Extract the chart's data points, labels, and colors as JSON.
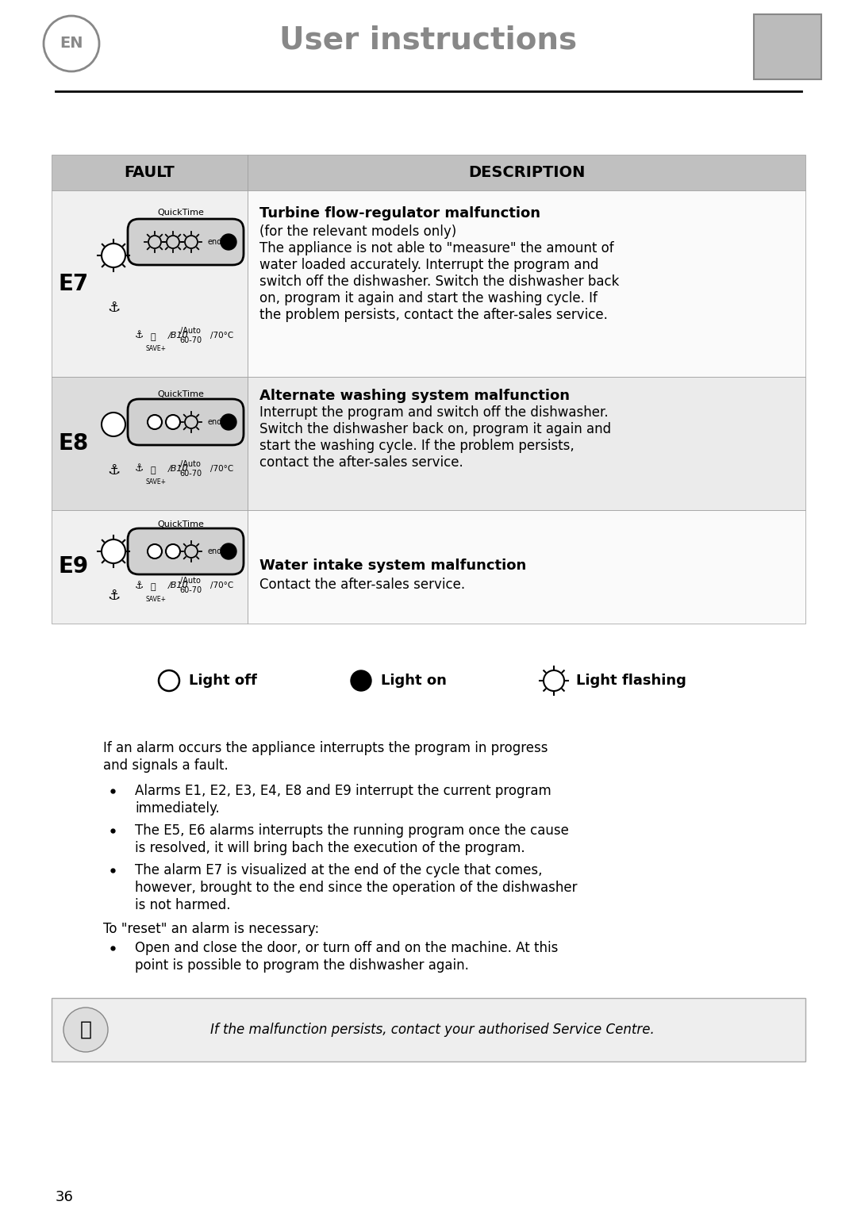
{
  "title": "User instructions",
  "bg_color": "#ffffff",
  "fault_header": "FAULT",
  "desc_header": "DESCRIPTION",
  "e7_label": "E7",
  "e8_label": "E8",
  "e9_label": "E9",
  "e7_title": "Turbine flow-regulator malfunction",
  "e7_sub": "(for the relevant models only)",
  "e7_desc": "The appliance is not able to \"measure\" the amount of water loaded accurately. Interrupt the program and switch off the dishwasher. Switch the dishwasher back on, program it again and start the washing cycle. If the problem persists, contact the after-sales service.",
  "e8_title": "Alternate washing system malfunction",
  "e8_desc": "Interrupt the program and switch off the dishwasher. Switch the dishwasher back on, program it again and start the washing cycle. If the problem persists, contact the after-sales service.",
  "e9_title": "Water intake system malfunction",
  "e9_desc": "Contact the after-sales service.",
  "light_off_label": "Light off",
  "light_on_label": "Light on",
  "light_flashing_label": "Light flashing",
  "para1": "If an alarm occurs the appliance interrupts the program in progress and signals a fault.",
  "bullet1": "Alarms E1, E2, E3, E4, E8 and E9 interrupt the current program immediately.",
  "bullet2": "The E5, E6 alarms interrupts the running program once the cause is resolved, it will bring bach the execution of the program.",
  "bullet3": "The alarm E7 is visualized at the end of the cycle that comes, however, brought to the end since the operation of the dishwasher is not harmed.",
  "reset_title": "To \"reset\" an alarm is necessary:",
  "bullet4": "Open and close the door, or turn off and on the machine. At this point is possible to program the dishwasher again.",
  "footer_italic": "If the malfunction persists, contact your authorised Service Centre.",
  "page_number": "36"
}
